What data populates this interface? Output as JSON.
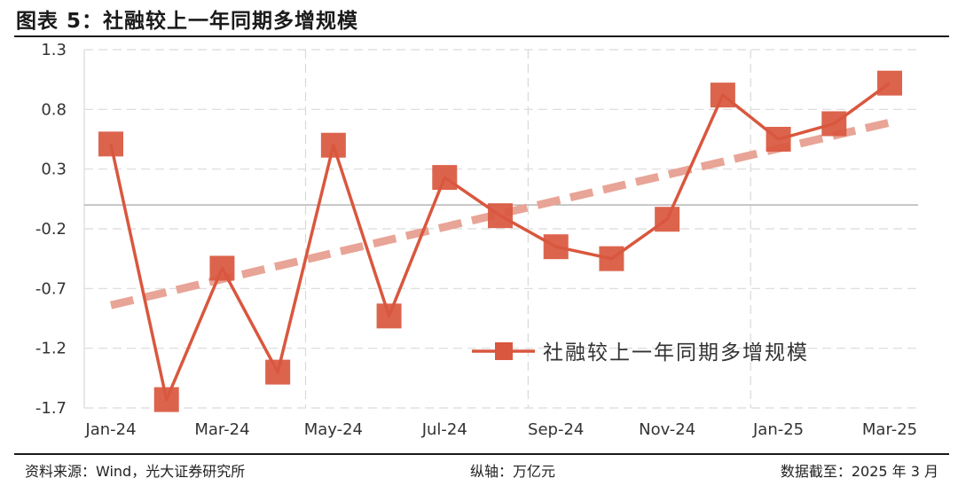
{
  "figure": {
    "title": "图表 5：社融较上一年同期多增规模"
  },
  "footer": {
    "source": "资料来源：Wind，光大证券研究所",
    "unit": "纵轴：万亿元",
    "date": "数据截至：2025 年 3 月"
  },
  "colors": {
    "series": "#d9573e",
    "trend": "#e8a496",
    "grid": "#d9d9d9",
    "zero_line": "#9e9e9e"
  },
  "chart_data": {
    "type": "line",
    "x": [
      "Jan-24",
      "Feb-24",
      "Mar-24",
      "Apr-24",
      "May-24",
      "Jun-24",
      "Jul-24",
      "Aug-24",
      "Sep-24",
      "Oct-24",
      "Nov-24",
      "Dec-24",
      "Jan-25",
      "Feb-25",
      "Mar-25"
    ],
    "x_tick_labels": [
      "Jan-24",
      "Mar-24",
      "May-24",
      "Jul-24",
      "Sep-24",
      "Nov-24",
      "Jan-25",
      "Mar-25"
    ],
    "y_ticks": [
      "1.3",
      "0.8",
      "0.3",
      "-0.2",
      "-0.7",
      "-1.2",
      "-1.7"
    ],
    "ylim": [
      -1.7,
      1.3
    ],
    "series": [
      {
        "name": "社融较上一年同期多增规模",
        "marker": "square",
        "values": [
          0.51,
          -1.63,
          -0.53,
          -1.4,
          0.5,
          -0.93,
          0.23,
          -0.09,
          -0.35,
          -0.45,
          -0.12,
          0.92,
          0.55,
          0.68,
          1.02
        ]
      }
    ],
    "trendline": {
      "style": "dashed",
      "start": -0.84,
      "end": 0.69
    },
    "grid": true,
    "legend": "bottom-right"
  }
}
